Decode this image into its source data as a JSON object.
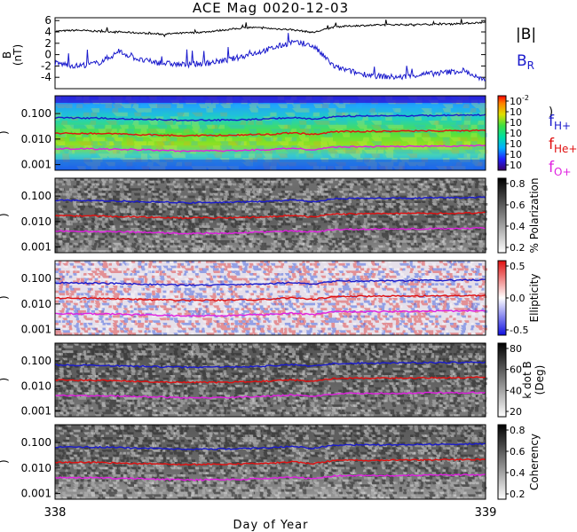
{
  "title": "ACE Mag 0020-12-03",
  "xlabel": "Day of Year",
  "x_ticks": [
    "338",
    "339"
  ],
  "colors": {
    "black": "#000000",
    "blue": "#1a1acc",
    "red": "#e01010",
    "magenta": "#e020e0"
  },
  "chart_data": [
    {
      "type": "line",
      "panel": "field",
      "ylabel": "B",
      "yunit": "(nT)",
      "ylim": [
        -6,
        6.5
      ],
      "y_ticks": [
        "6",
        "4",
        "2",
        "0",
        "-2",
        "-4"
      ],
      "x": [
        338.0,
        338.05,
        338.1,
        338.15,
        338.2,
        338.25,
        338.3,
        338.35,
        338.4,
        338.45,
        338.5,
        338.55,
        338.6,
        338.65,
        338.7,
        338.75,
        338.8,
        338.85,
        338.9,
        338.95,
        339.0
      ],
      "series": [
        {
          "name": "|B|",
          "color": "black",
          "values": [
            4.1,
            4.3,
            4.1,
            4.0,
            3.8,
            3.6,
            3.8,
            4.0,
            4.4,
            4.8,
            4.6,
            4.4,
            3.9,
            4.9,
            5.1,
            5.2,
            5.3,
            5.3,
            5.4,
            5.5,
            5.7
          ]
        },
        {
          "name": "B",
          "name_sub": "R",
          "color": "blue",
          "values": [
            -1.5,
            -2.0,
            -1.5,
            0.5,
            -1.0,
            -1.5,
            -1.8,
            -1.5,
            -1.0,
            0.0,
            1.0,
            2.2,
            1.5,
            -2.2,
            -3.2,
            -3.8,
            -4.0,
            -3.5,
            -3.2,
            -2.8,
            -4.8
          ]
        }
      ]
    },
    {
      "type": "heatmap",
      "panel": "power",
      "ylabel_hidden": "Hz",
      "ylim": [
        0.0006,
        0.5
      ],
      "y_scale": "log",
      "y_ticks": [
        "0.100",
        "0.010",
        "0.001"
      ],
      "colorbar": {
        "scale": "rainbow",
        "ticks": [
          "10-2",
          "10",
          "10",
          "10",
          "10",
          "10",
          "10"
        ],
        "bracket": ")"
      },
      "legend": [
        {
          "label": "f",
          "sub": "H+",
          "color": "blue"
        },
        {
          "label": "f",
          "sub": "He+",
          "color": "red"
        },
        {
          "label": "f",
          "sub": "O+",
          "color": "magenta"
        }
      ]
    },
    {
      "type": "heatmap",
      "panel": "polarization",
      "ylim": [
        0.0006,
        0.5
      ],
      "y_scale": "log",
      "y_ticks": [
        "0.100",
        "0.010",
        "0.001"
      ],
      "colorbar": {
        "scale": "gray",
        "label": "% Polarization",
        "ticks": [
          "0.8",
          "0.6",
          "0.4",
          "0.2"
        ]
      }
    },
    {
      "type": "heatmap",
      "panel": "ellipticity",
      "ylim": [
        0.0006,
        0.5
      ],
      "y_scale": "log",
      "y_ticks": [
        "0.100",
        "0.010",
        "0.001"
      ],
      "colorbar": {
        "scale": "bwr",
        "label": "Ellipticity",
        "ticks": [
          "0.5",
          "0.0",
          "-0.5"
        ]
      }
    },
    {
      "type": "heatmap",
      "panel": "kdotb",
      "ylim": [
        0.0006,
        0.5
      ],
      "y_scale": "log",
      "y_ticks": [
        "0.100",
        "0.010",
        "0.001"
      ],
      "colorbar": {
        "scale": "gray",
        "label": "k dot B",
        "label2": "(Deg)",
        "ticks": [
          "80",
          "60",
          "40",
          "20"
        ]
      }
    },
    {
      "type": "heatmap",
      "panel": "coherency",
      "ylim": [
        0.0006,
        0.5
      ],
      "y_scale": "log",
      "y_ticks": [
        "0.100",
        "0.010",
        "0.001"
      ],
      "colorbar": {
        "scale": "gray",
        "label": "Coherency",
        "ticks": [
          "0.8",
          "0.6",
          "0.4",
          "0.2"
        ]
      }
    }
  ],
  "gyro_lines": {
    "x": [
      338.0,
      338.1,
      338.2,
      338.3,
      338.4,
      338.5,
      338.55,
      338.6,
      338.65,
      338.7,
      338.8,
      338.9,
      339.0
    ],
    "fH": [
      0.068,
      0.066,
      0.06,
      0.055,
      0.056,
      0.062,
      0.07,
      0.06,
      0.078,
      0.08,
      0.082,
      0.085,
      0.088
    ],
    "fHe": [
      0.017,
      0.0165,
      0.015,
      0.0138,
      0.014,
      0.0155,
      0.0175,
      0.015,
      0.0195,
      0.02,
      0.0205,
      0.021,
      0.022
    ],
    "fO": [
      0.0042,
      0.0041,
      0.0038,
      0.0034,
      0.0035,
      0.0039,
      0.0044,
      0.0038,
      0.0049,
      0.005,
      0.0051,
      0.0053,
      0.0055
    ]
  }
}
